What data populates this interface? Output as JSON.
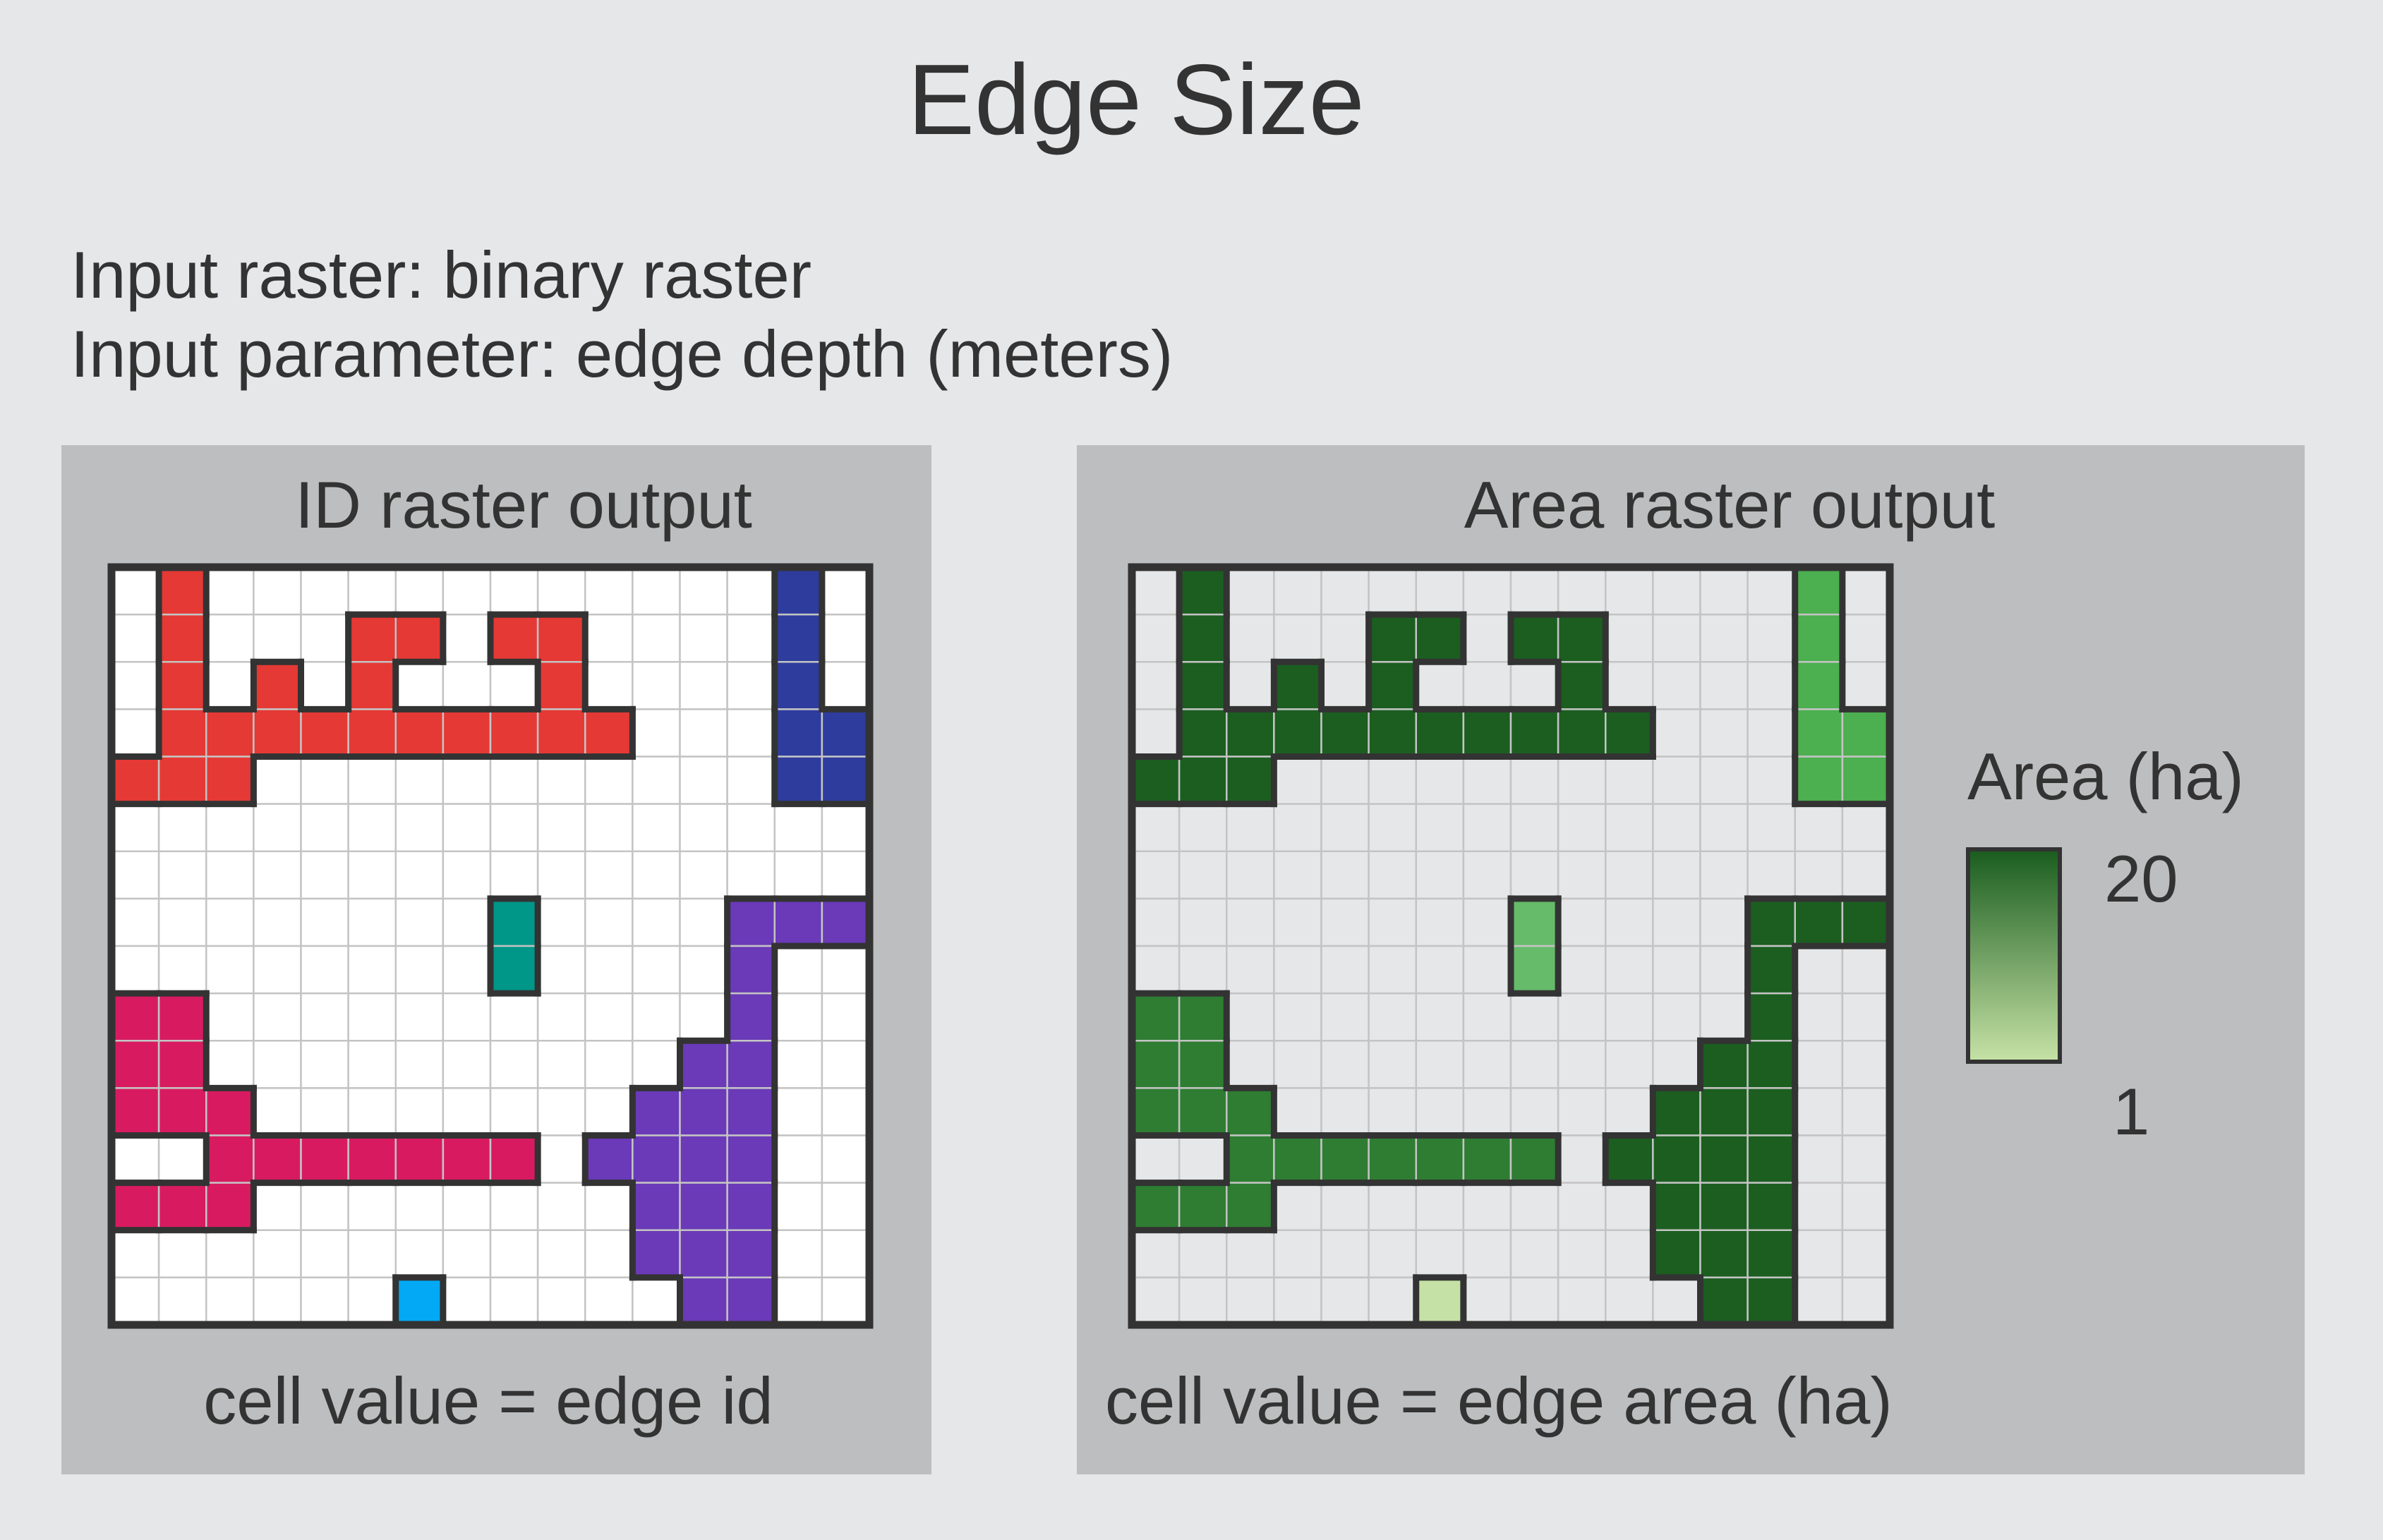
{
  "title": "Edge Size",
  "inputs": {
    "raster": "Input raster: binary raster",
    "parameter": "Input parameter: edge depth (meters)"
  },
  "id_panel": {
    "title": "ID raster output",
    "caption": "cell value = edge id",
    "background_cell_color": "#ffffff",
    "id_colors": {
      "1": "#e53935",
      "2": "#2e3c9e",
      "3": "#009688",
      "4": "#6a3ab8",
      "5": "#d81b60",
      "6": "#03a9f4"
    }
  },
  "area_panel": {
    "title": "Area raster output",
    "caption": "cell value = edge area (ha)",
    "background_cell_color": "#e6e7e9",
    "id_colors": {
      "1": "#1b5e20",
      "2": "#4caf50",
      "3": "#66bb6a",
      "4": "#1b5e20",
      "5": "#2e7d32",
      "6": "#c5e1a5"
    }
  },
  "legend": {
    "title": "Area (ha)",
    "max_label": "20",
    "min_label": "1",
    "color_top": "#1b5e20",
    "color_bottom": "#c5e1a5"
  },
  "grid": {
    "rows": 16,
    "cols": 16,
    "cells": [
      "0100000000000020",
      "0100011011000020",
      "0101010001000020",
      "0111111111100022",
      "1110000000000022",
      "0000000000000000",
      "0000000000000000",
      "0000000030000444",
      "0000000030000400",
      "5500000000000400",
      "5500000000004400",
      "5550000000044400",
      "0055555550444400",
      "5550000000044400",
      "0000000000044400",
      "0000006000004400"
    ]
  }
}
